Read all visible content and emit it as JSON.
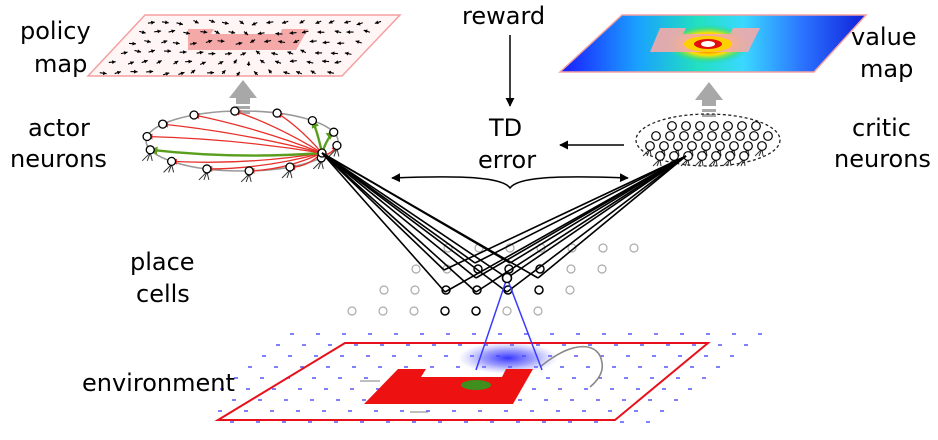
{
  "labels": {
    "policy_map": [
      "policy",
      "map"
    ],
    "value_map": [
      "value",
      "map"
    ],
    "reward": "reward",
    "td_error": [
      "TD",
      "error"
    ],
    "actor_neurons": [
      "actor",
      "neurons"
    ],
    "critic_neurons": [
      "critic",
      "neurons"
    ],
    "place_cells": [
      "place",
      "cells"
    ],
    "environment": "environment"
  },
  "colors": {
    "actor_connection": "#e8302a",
    "actor_strong_connection": "#5a9e1e",
    "place_field": "#3b3bff",
    "environment_border": "#e8101a",
    "wall": "#ee1111",
    "map_border": "#f4a0a0",
    "map_wall": "#f5a8a8",
    "goal": "#3e8f1e"
  },
  "icons": {
    "upward_arrow": "thick-gray-arrow-icon"
  }
}
